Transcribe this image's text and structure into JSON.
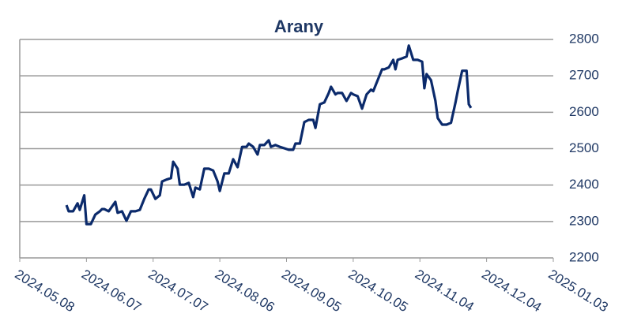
{
  "chart_data": {
    "type": "line",
    "title": "Arany",
    "x": [
      "2024.05.29",
      "2024.05.30",
      "2024.06.01",
      "2024.06.03",
      "2024.06.04",
      "2024.06.06",
      "2024.06.07",
      "2024.06.09",
      "2024.06.11",
      "2024.06.13",
      "2024.06.14",
      "2024.06.15",
      "2024.06.17",
      "2024.06.20",
      "2024.06.21",
      "2024.06.23",
      "2024.06.25",
      "2024.06.27",
      "2024.06.29",
      "2024.07.01",
      "2024.07.03",
      "2024.07.05",
      "2024.07.06",
      "2024.07.08",
      "2024.07.10",
      "2024.07.11",
      "2024.07.13",
      "2024.07.15",
      "2024.07.16",
      "2024.07.18",
      "2024.07.19",
      "2024.07.21",
      "2024.07.23",
      "2024.07.25",
      "2024.07.26",
      "2024.07.28",
      "2024.07.30",
      "2024.08.01",
      "2024.08.03",
      "2024.08.05",
      "2024.08.06",
      "2024.08.08",
      "2024.08.10",
      "2024.08.12",
      "2024.08.14",
      "2024.08.16",
      "2024.08.18",
      "2024.08.19",
      "2024.08.21",
      "2024.08.23",
      "2024.08.24",
      "2024.08.26",
      "2024.08.28",
      "2024.08.29",
      "2024.08.31",
      "2024.09.02",
      "2024.09.04",
      "2024.09.06",
      "2024.09.08",
      "2024.09.09",
      "2024.09.11",
      "2024.09.13",
      "2024.09.15",
      "2024.09.17",
      "2024.09.18",
      "2024.09.20",
      "2024.09.22",
      "2024.09.24",
      "2024.09.25",
      "2024.09.27",
      "2024.09.28",
      "2024.09.30",
      "2024.10.02",
      "2024.10.04",
      "2024.10.05",
      "2024.10.07",
      "2024.10.09",
      "2024.10.11",
      "2024.10.13",
      "2024.10.14",
      "2024.10.16",
      "2024.10.18",
      "2024.10.19",
      "2024.10.21",
      "2024.10.23",
      "2024.10.24",
      "2024.10.25",
      "2024.10.27",
      "2024.10.29",
      "2024.10.30",
      "2024.11.01",
      "2024.11.03",
      "2024.11.05",
      "2024.11.06",
      "2024.11.07",
      "2024.11.09",
      "2024.11.11",
      "2024.11.12",
      "2024.11.14",
      "2024.11.16",
      "2024.11.18",
      "2024.11.20",
      "2024.11.21",
      "2024.11.23",
      "2024.11.25",
      "2024.11.26",
      "2024.11.27"
    ],
    "series": [
      {
        "name": "Arany",
        "color": "#0b2a6b",
        "values": [
          2345,
          2328,
          2328,
          2350,
          2332,
          2372,
          2293,
          2293,
          2319,
          2328,
          2334,
          2334,
          2328,
          2354,
          2324,
          2328,
          2302,
          2328,
          2328,
          2332,
          2362,
          2388,
          2388,
          2362,
          2372,
          2410,
          2415,
          2419,
          2464,
          2445,
          2401,
          2401,
          2406,
          2367,
          2393,
          2388,
          2445,
          2445,
          2440,
          2410,
          2384,
          2432,
          2432,
          2471,
          2449,
          2505,
          2505,
          2514,
          2505,
          2484,
          2510,
          2510,
          2523,
          2505,
          2510,
          2505,
          2501,
          2497,
          2497,
          2514,
          2514,
          2573,
          2579,
          2579,
          2557,
          2622,
          2627,
          2653,
          2670,
          2649,
          2653,
          2653,
          2631,
          2653,
          2649,
          2644,
          2610,
          2649,
          2662,
          2658,
          2688,
          2718,
          2718,
          2723,
          2744,
          2718,
          2744,
          2748,
          2753,
          2783,
          2744,
          2744,
          2739,
          2666,
          2705,
          2688,
          2631,
          2584,
          2566,
          2566,
          2571,
          2627,
          2658,
          2714,
          2714,
          2622,
          2612
        ]
      }
    ],
    "xlim": [
      "2024.05.08",
      "2025.01.03"
    ],
    "xticks": [
      "2024.05.08",
      "2024.06.07",
      "2024.07.07",
      "2024.08.06",
      "2024.09.05",
      "2024.10.05",
      "2024.11.04",
      "2024.12.04",
      "2025.01.03"
    ],
    "ylim": [
      2200,
      2800
    ],
    "yticks": [
      2200,
      2300,
      2400,
      2500,
      2600,
      2700,
      2800
    ],
    "grid": true
  }
}
